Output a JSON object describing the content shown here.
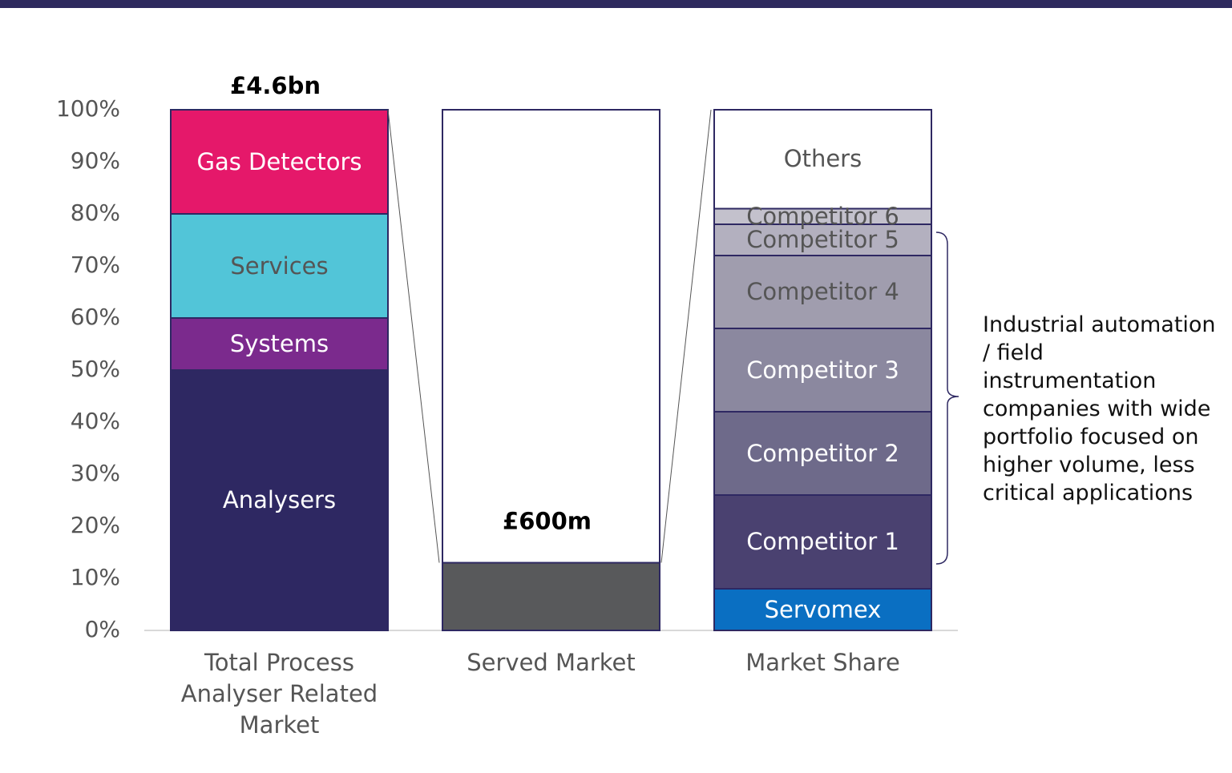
{
  "chart_data": {
    "type": "stacked-bar",
    "ylim": [
      0,
      100
    ],
    "yticks": [
      {
        "value": 0,
        "label": "0%"
      },
      {
        "value": 10,
        "label": "10%"
      },
      {
        "value": 20,
        "label": "20%"
      },
      {
        "value": 30,
        "label": "30%"
      },
      {
        "value": 40,
        "label": "40%"
      },
      {
        "value": 50,
        "label": "50%"
      },
      {
        "value": 60,
        "label": "60%"
      },
      {
        "value": 70,
        "label": "70%"
      },
      {
        "value": 80,
        "label": "80%"
      },
      {
        "value": 90,
        "label": "90%"
      },
      {
        "value": 100,
        "label": "100%"
      }
    ],
    "bars": [
      {
        "category": "Total Process Analyser Related Market",
        "total_label": "£4.6bn",
        "segments": [
          {
            "name": "Analysers",
            "value": 50,
            "color": "#2e2862"
          },
          {
            "name": "Systems",
            "value": 10,
            "color": "#7b2a8d"
          },
          {
            "name": "Services",
            "value": 20,
            "color": "#52c5d8"
          },
          {
            "name": "Gas Detectors",
            "value": 20,
            "color": "#e5186a"
          }
        ]
      },
      {
        "category": "Served Market",
        "total_label": "£600m",
        "segments": [
          {
            "value": 13,
            "color": "#58595b"
          },
          {
            "value": 87,
            "color": "#ffffff"
          }
        ]
      },
      {
        "category": "Market Share",
        "segments": [
          {
            "name": "Servomex",
            "value": 8,
            "color": "#0a6fc2"
          },
          {
            "name": "Competitor 1",
            "value": 18,
            "color": "#4a4170"
          },
          {
            "name": "Competitor 2",
            "value": 16,
            "color": "#6e6a8a"
          },
          {
            "name": "Competitor 3",
            "value": 16,
            "color": "#8b889f"
          },
          {
            "name": "Competitor 4",
            "value": 14,
            "color": "#a09dae"
          },
          {
            "name": "Competitor 5",
            "value": 6,
            "color": "#b3b0bf"
          },
          {
            "name": "Competitor 6",
            "value": 3,
            "color": "#c3c1cc"
          },
          {
            "name": "Others",
            "value": 19,
            "color": "#ffffff"
          }
        ]
      }
    ],
    "annotation": "Industrial automation / field instrumentation companies with wide portfolio focused on higher volume, less critical applications"
  }
}
